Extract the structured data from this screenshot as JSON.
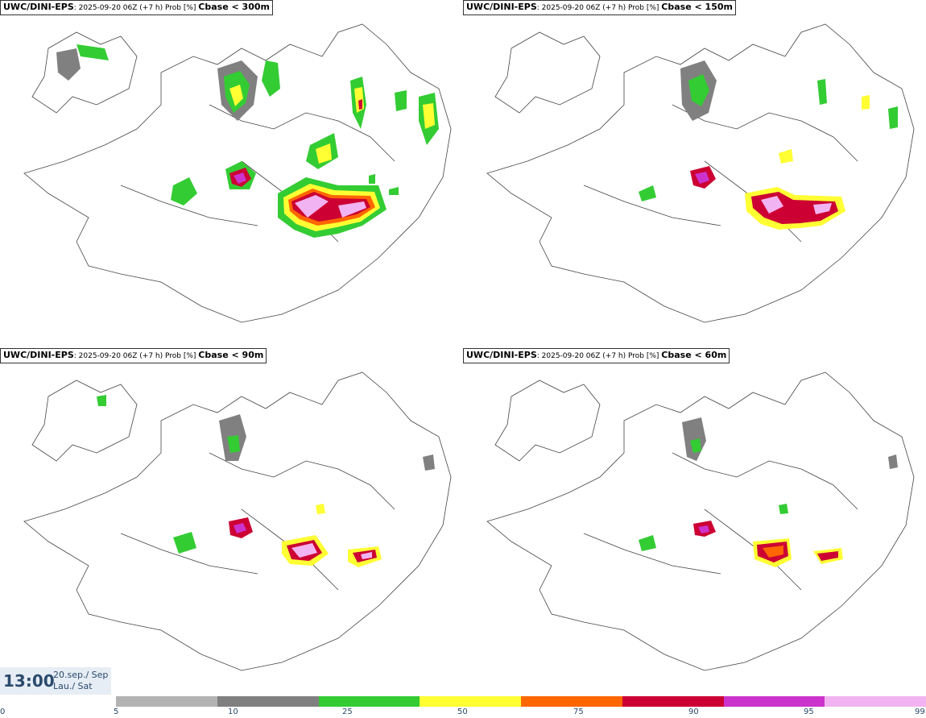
{
  "panels": [
    {
      "model": "UWC/DINI-EPS",
      "meta": ": 2025-09-20 06Z (+7 h) Prob [%] ",
      "threshold": "Cbase < 300m"
    },
    {
      "model": "UWC/DINI-EPS",
      "meta": ": 2025-09-20 06Z (+7 h) Prob [%] ",
      "threshold": "Cbase < 150m"
    },
    {
      "model": "UWC/DINI-EPS",
      "meta": ": 2025-09-20 06Z (+7 h) Prob [%] ",
      "threshold": "Cbase < 90m"
    },
    {
      "model": "UWC/DINI-EPS",
      "meta": ": 2025-09-20 06Z (+7 h) Prob [%] ",
      "threshold": "Cbase < 60m"
    }
  ],
  "valid_time": {
    "time": "13:00",
    "date_line1": "20.sep./ Sep",
    "date_line2": "Lau./ Sat"
  },
  "legend": {
    "ticks": [
      "0",
      "5",
      "10",
      "25",
      "50",
      "75",
      "90",
      "95",
      "99"
    ],
    "colors": [
      "#b3b3b3",
      "#808080",
      "#33cc33",
      "#ffff33",
      "#ff6600",
      "#cc0033",
      "#cc33cc",
      "#f2b3f2"
    ]
  }
}
